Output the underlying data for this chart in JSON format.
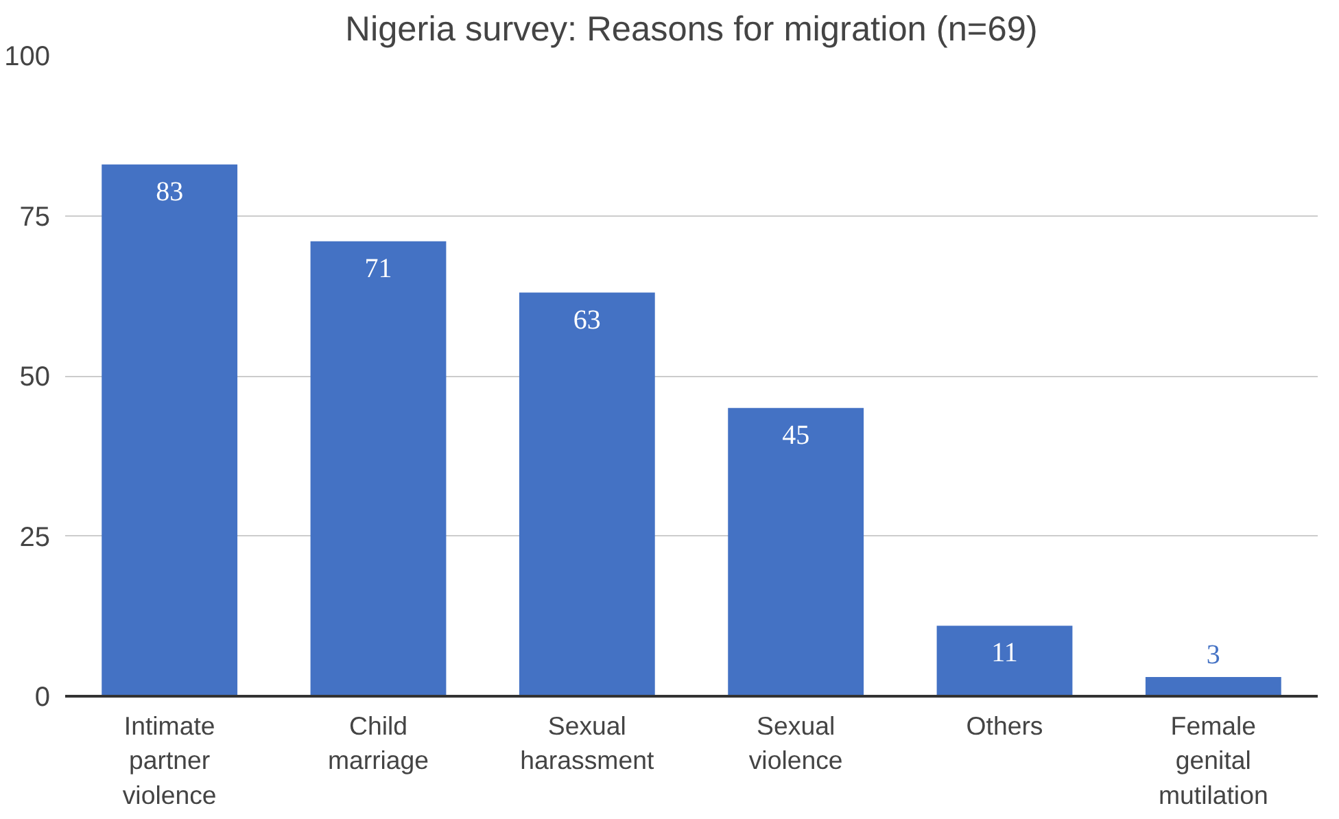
{
  "chart_data": {
    "type": "bar",
    "title": "Nigeria survey: Reasons for migration (n=69)",
    "categories": [
      "Intimate partner violence",
      "Child marriage",
      "Sexual harassment",
      "Sexual violence",
      "Others",
      "Female genital mutilation"
    ],
    "values": [
      83,
      71,
      63,
      45,
      11,
      3
    ],
    "color": "#4472c4",
    "ylim": [
      0,
      100
    ],
    "yticks": [
      0,
      25,
      50,
      75,
      100
    ],
    "grid": "y",
    "data_labels": true
  }
}
